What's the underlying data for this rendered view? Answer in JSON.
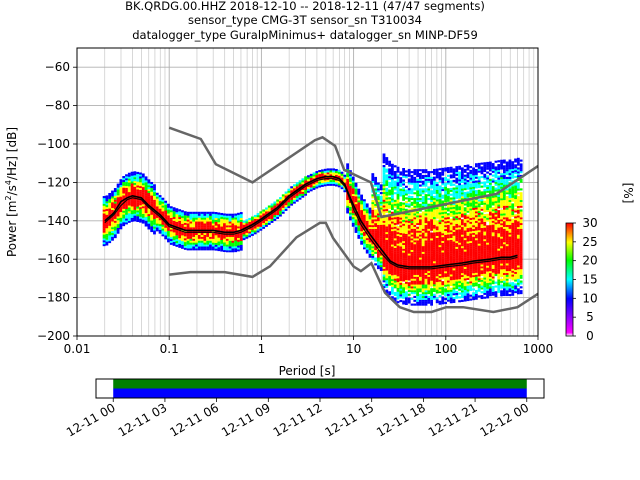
{
  "chart_data": [
    {
      "type": "heatmap",
      "title_lines": [
        "BK.QRDG.00.HHZ   2018-12-10 -- 2018-12-11  (47/47 segments)",
        "sensor_type CMG-3T sensor_sn T310034",
        "datalogger_type GuralpMinimus+ datalogger_sn MINP-DF59"
      ],
      "xlabel": "Period [s]",
      "ylabel_parts": [
        "Power [m",
        "2",
        "/s",
        "4",
        "/Hz] [dB]"
      ],
      "x_scale": "log",
      "xlim": [
        0.01,
        1000
      ],
      "ylim": [
        -200,
        -50
      ],
      "xticks": [
        {
          "value": 0.01,
          "label": "0.01"
        },
        {
          "value": 0.1,
          "label": "0.1"
        },
        {
          "value": 1,
          "label": "1"
        },
        {
          "value": 10,
          "label": "10"
        },
        {
          "value": 100,
          "label": "100"
        },
        {
          "value": 1000,
          "label": "1000"
        }
      ],
      "yticks": [
        {
          "value": -60,
          "label": "−60"
        },
        {
          "value": -80,
          "label": "−80"
        },
        {
          "value": -100,
          "label": "−100"
        },
        {
          "value": -120,
          "label": "−120"
        },
        {
          "value": -140,
          "label": "−140"
        },
        {
          "value": -160,
          "label": "−160"
        },
        {
          "value": -180,
          "label": "−180"
        },
        {
          "value": -200,
          "label": "−200"
        }
      ],
      "grid": true,
      "colorbar": {
        "label": "[%]",
        "range": [
          0,
          30
        ],
        "ticks": [
          {
            "value": 0,
            "label": "0"
          },
          {
            "value": 5,
            "label": "5"
          },
          {
            "value": 10,
            "label": "10"
          },
          {
            "value": 15,
            "label": "15"
          },
          {
            "value": 20,
            "label": "20"
          },
          {
            "value": 25,
            "label": "25"
          },
          {
            "value": 30,
            "label": "30"
          }
        ],
        "colors": [
          "#ffffff",
          "#ff00ff",
          "#0000ff",
          "#00ffff",
          "#00ff00",
          "#ffff00",
          "#ff0000"
        ]
      },
      "noise_models": {
        "high": {
          "periods": [
            0.1,
            0.22,
            0.32,
            0.8,
            3.8,
            4.6,
            6.3,
            7.9,
            15.4,
            20,
            354,
            1000
          ],
          "values": [
            -91.5,
            -97.4,
            -110.5,
            -120,
            -98,
            -96.5,
            -101,
            -113.5,
            -120,
            -138,
            -126,
            -111.5
          ]
        },
        "low": {
          "periods": [
            0.1,
            0.17,
            0.4,
            0.8,
            1.24,
            2.4,
            4.3,
            5,
            6,
            10,
            12,
            15.6,
            21.9,
            31.6,
            45,
            70,
            101,
            154,
            328,
            600,
            1000
          ],
          "values": [
            -168,
            -166.7,
            -166.7,
            -169.2,
            -163.7,
            -148.6,
            -141.1,
            -141.1,
            -149,
            -163.8,
            -166.2,
            -162.1,
            -177.5,
            -185,
            -187.5,
            -187.5,
            -185,
            -185,
            -187.5,
            -185,
            -178
          ]
        }
      },
      "mode_line": {
        "periods": [
          0.02,
          0.025,
          0.03,
          0.035,
          0.04,
          0.05,
          0.06,
          0.08,
          0.1,
          0.15,
          0.2,
          0.3,
          0.4,
          0.5,
          0.6,
          0.8,
          1,
          1.5,
          2,
          3,
          4,
          5,
          6,
          7,
          8,
          9,
          10,
          12,
          15,
          20,
          25,
          30,
          40,
          50,
          70,
          100,
          150,
          200,
          300,
          400,
          500,
          600
        ],
        "values": [
          -140,
          -136,
          -130,
          -128,
          -127,
          -128,
          -132,
          -137,
          -142,
          -145,
          -145,
          -145,
          -146,
          -146,
          -145,
          -142,
          -139,
          -133,
          -127,
          -121,
          -118,
          -117,
          -117,
          -118,
          -121,
          -127,
          -132,
          -140,
          -147,
          -155,
          -161,
          -163,
          -164,
          -164,
          -164,
          -163,
          -162,
          -161,
          -160,
          -159,
          -159,
          -158
        ]
      },
      "mean_line": {
        "periods": [
          0.02,
          0.025,
          0.03,
          0.035,
          0.04,
          0.05,
          0.06,
          0.08,
          0.1,
          0.15,
          0.2,
          0.3,
          0.4,
          0.5,
          0.6,
          0.8,
          1,
          1.5,
          2,
          3,
          4,
          5,
          6,
          7,
          8,
          9,
          10,
          12,
          15,
          20,
          25,
          30,
          40,
          50,
          70,
          100,
          150,
          200,
          300,
          400,
          500,
          600
        ],
        "values": [
          -141,
          -137,
          -132,
          -129,
          -128,
          -129,
          -133,
          -138,
          -143,
          -146,
          -146,
          -146,
          -147,
          -147,
          -146,
          -143,
          -140,
          -134,
          -128,
          -122,
          -119,
          -118,
          -118,
          -119,
          -122,
          -128,
          -134,
          -142,
          -149,
          -157,
          -162,
          -164,
          -165,
          -165,
          -165,
          -164,
          -163,
          -162,
          -161,
          -160,
          -160,
          -159
        ]
      }
    },
    {
      "type": "bar",
      "description_of_axis": "time coverage",
      "xlim": [
        "2018-12-10T23:00",
        "2018-12-12T01:00"
      ],
      "xticks": [
        "12-11 00",
        "12-11 03",
        "12-11 06",
        "12-11 09",
        "12-11 12",
        "12-11 15",
        "12-11 18",
        "12-11 21",
        "12-12 00"
      ],
      "coverage": [
        {
          "start": "2018-12-11T00:00",
          "end": "2018-12-12T00:00",
          "color": "#008000",
          "row": "top"
        },
        {
          "start": "2018-12-11T00:00",
          "end": "2018-12-12T00:00",
          "color": "#0000ff",
          "row": "bottom"
        }
      ]
    }
  ]
}
